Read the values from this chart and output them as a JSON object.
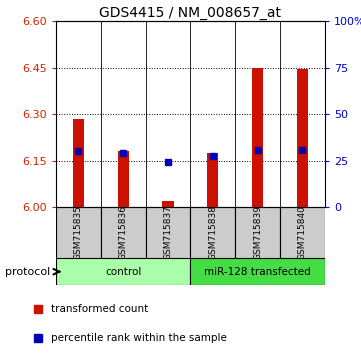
{
  "title": "GDS4415 / NM_008657_at",
  "samples": [
    "GSM715835",
    "GSM715836",
    "GSM715837",
    "GSM715838",
    "GSM715839",
    "GSM715840"
  ],
  "red_bar_top": [
    6.285,
    6.18,
    6.02,
    6.175,
    6.45,
    6.445
  ],
  "red_bar_bottom": [
    6.0,
    6.0,
    6.0,
    6.0,
    6.0,
    6.0
  ],
  "blue_values": [
    6.18,
    6.175,
    6.145,
    6.165,
    6.185,
    6.185
  ],
  "ylim": [
    6.0,
    6.6
  ],
  "yticks_left": [
    6.0,
    6.15,
    6.3,
    6.45,
    6.6
  ],
  "yticks_right": [
    0,
    25,
    50,
    75,
    100
  ],
  "yticks_right_labels": [
    "0",
    "25",
    "50",
    "75",
    "100%"
  ],
  "groups": [
    {
      "label": "control",
      "start": 0,
      "end": 3,
      "color": "#aaffaa"
    },
    {
      "label": "miR-128 transfected",
      "start": 3,
      "end": 6,
      "color": "#44dd44"
    }
  ],
  "group_label_prefix": "protocol",
  "red_color": "#cc1100",
  "blue_color": "#0000bb",
  "bar_width": 0.25,
  "blue_marker_size": 5,
  "background_color": "#ffffff",
  "grid_color": "#000000",
  "tick_label_color_left": "#cc2200",
  "tick_label_color_right": "#0000cc",
  "title_fontsize": 10,
  "legend_red_label": "transformed count",
  "legend_blue_label": "percentile rank within the sample",
  "sample_bg_color": "#cccccc",
  "sample_text_color": "#000000"
}
